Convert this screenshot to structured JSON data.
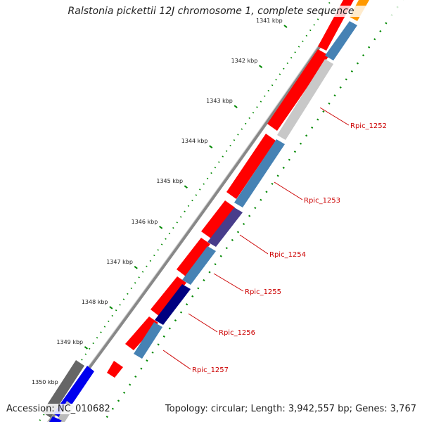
{
  "title": "Ralstonia pickettii 12J chromosome 1, complete sequence",
  "accession": "Accession: NC_010682",
  "summary": "Topology: circular; Length: 3,942,557 bp; Genes: 3,767",
  "ticks": [
    {
      "label": "1341 kbp",
      "t": 0.0
    },
    {
      "label": "1342 kbp",
      "t": 0.111
    },
    {
      "label": "1343 kbp",
      "t": 0.222
    },
    {
      "label": "1344 kbp",
      "t": 0.333
    },
    {
      "label": "1345 kbp",
      "t": 0.444
    },
    {
      "label": "1346 kbp",
      "t": 0.556
    },
    {
      "label": "1347 kbp",
      "t": 0.667
    },
    {
      "label": "1348 kbp",
      "t": 0.778
    },
    {
      "label": "1349 kbp",
      "t": 0.889
    },
    {
      "label": "1350 kbp",
      "t": 1.0
    }
  ],
  "genes": [
    {
      "name": "Rpic_1252"
    },
    {
      "name": "Rpic_1253"
    },
    {
      "name": "Rpic_1254"
    },
    {
      "name": "Rpic_1255"
    },
    {
      "name": "Rpic_1256"
    },
    {
      "name": "Rpic_1257"
    }
  ],
  "colors": {
    "backbone": "#777777",
    "cds": "#ff0000",
    "feature_blue": "#4682b4",
    "feature_gray": "#c8c8c8",
    "feature_purple": "#483d8b",
    "feature_navy": "#000080",
    "feature_orange": "#ff9900",
    "dots": "#008800",
    "label": "#cc0000"
  }
}
